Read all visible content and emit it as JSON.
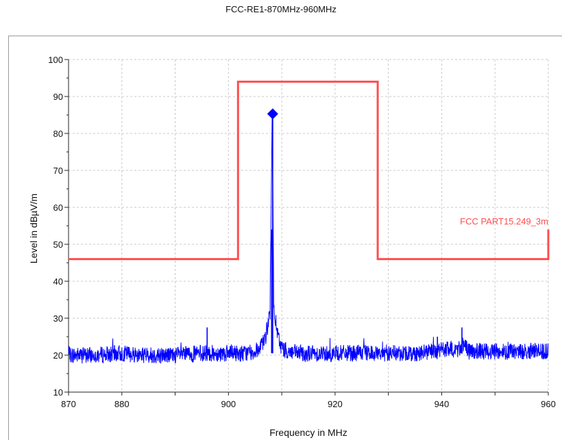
{
  "chart_data": {
    "type": "line",
    "title": "FCC-RE1-870MHz-960MHz",
    "xlabel": "Frequency in MHz",
    "ylabel": "Level in dBµV/m",
    "xlim": [
      870,
      960
    ],
    "ylim": [
      10,
      100
    ],
    "x_ticks": [
      870,
      880,
      900,
      920,
      940,
      960
    ],
    "y_ticks": [
      10,
      20,
      30,
      40,
      50,
      60,
      70,
      80,
      90,
      100
    ],
    "grid": true,
    "series": [
      {
        "name": "FCC PART15.249_3m",
        "color": "#ff4d4d",
        "x": [
          870,
          901.8,
          901.8,
          928,
          928,
          960,
          960
        ],
        "y": [
          46,
          46,
          94,
          94,
          46,
          46,
          54
        ]
      },
      {
        "color": "#0000ff",
        "noise_floor_x": [
          870,
          875,
          880,
          885,
          890,
          895,
          900,
          903,
          905,
          906,
          907,
          907.8,
          908.2,
          908.5,
          909,
          909.5,
          910,
          911,
          913,
          915,
          920,
          925,
          930,
          935,
          939,
          940,
          943,
          944,
          945,
          950,
          955,
          960
        ],
        "noise_floor_y": [
          20,
          20,
          20.5,
          20,
          20,
          20.5,
          20.5,
          20.5,
          21,
          22,
          25,
          32,
          85,
          35,
          27,
          24,
          22,
          21,
          20.5,
          20.5,
          20.5,
          20.5,
          20.5,
          20.5,
          21,
          21.5,
          21.5,
          23,
          21,
          21,
          21,
          21
        ]
      }
    ],
    "markers": [
      {
        "x": 908.3,
        "y": 85.3,
        "shape": "diamond",
        "color": "#0000ff"
      }
    ]
  }
}
